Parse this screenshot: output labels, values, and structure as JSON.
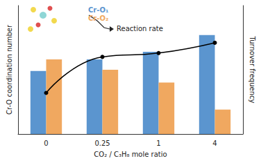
{
  "chart_data": {
    "type": "bar",
    "x_label": "CO₂ / C₃H₈ mole ratio",
    "y_label": "Cr-O coordination number",
    "y2_label": "Turnover frequency",
    "categories": [
      "0",
      "0.25",
      "1",
      "4"
    ],
    "series": [
      {
        "name": "Cr-O₁",
        "color": "#5b95cf",
        "values": [
          4.9,
          5.8,
          6.4,
          7.7
        ]
      },
      {
        "name": "Cr-O₂",
        "color": "#f0a860",
        "values": [
          5.8,
          5.0,
          4.0,
          1.9
        ]
      },
      {
        "type": "line",
        "axis": "y2",
        "color": "#000000",
        "marker": "circle",
        "line_style": "solid",
        "values": [
          3.2,
          6.0,
          6.3,
          7.1
        ]
      }
    ],
    "ylim": [
      0,
      10
    ],
    "y2lim": [
      0,
      10
    ],
    "tick_labels": "x",
    "grid": false,
    "legend": "top-left",
    "annotations": [
      {
        "text": "Reaction rate"
      }
    ]
  }
}
